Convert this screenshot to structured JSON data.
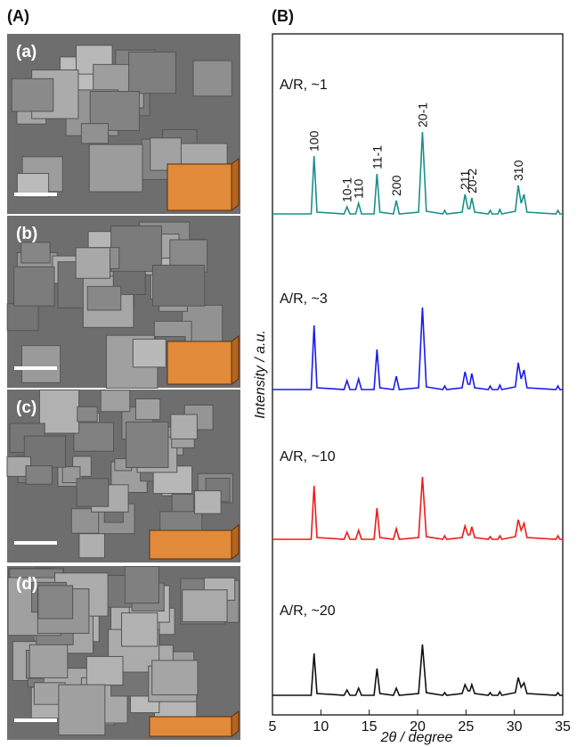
{
  "panels": {
    "A": "(A)",
    "B": "(B)",
    "images": [
      "(a)",
      "(b)",
      "(c)",
      "(d)"
    ]
  },
  "chart_data": {
    "type": "line",
    "xlabel": "2θ / degree",
    "ylabel": "Intensity / a.u.",
    "xlim": [
      5,
      35
    ],
    "xticks": [
      5,
      10,
      15,
      20,
      25,
      30,
      35
    ],
    "x": [
      5,
      9.0,
      9.3,
      9.6,
      12.4,
      12.7,
      13.0,
      13.6,
      13.9,
      14.2,
      15.5,
      15.8,
      16.1,
      17.5,
      17.8,
      18.1,
      20.1,
      20.5,
      20.9,
      22.6,
      22.8,
      23.0,
      24.6,
      24.9,
      25.2,
      25.4,
      25.6,
      25.9,
      27.3,
      27.5,
      27.7,
      28.3,
      28.5,
      28.7,
      30.1,
      30.4,
      30.7,
      31.0,
      31.3,
      34.3,
      34.5,
      34.7,
      35
    ],
    "series": [
      {
        "name": "A/R, ~1",
        "color": "#1a8f8a",
        "values": [
          0,
          0,
          65,
          2,
          0,
          8,
          0,
          0,
          12,
          0,
          0,
          45,
          2,
          0,
          15,
          0,
          2,
          92,
          3,
          0,
          4,
          0,
          2,
          22,
          6,
          6,
          18,
          2,
          0,
          4,
          0,
          0,
          5,
          0,
          3,
          32,
          12,
          22,
          2,
          0,
          4,
          0,
          0
        ]
      },
      {
        "name": "A/R, ~3",
        "color": "#1a1aee",
        "values": [
          0,
          0,
          72,
          2,
          0,
          10,
          0,
          0,
          12,
          0,
          0,
          45,
          2,
          0,
          15,
          0,
          2,
          92,
          3,
          0,
          4,
          0,
          2,
          20,
          6,
          6,
          18,
          2,
          0,
          4,
          0,
          0,
          5,
          0,
          3,
          30,
          12,
          22,
          2,
          0,
          4,
          0,
          0
        ]
      },
      {
        "name": "A/R, ~10",
        "color": "#ee1a1a",
        "values": [
          0,
          0,
          60,
          2,
          0,
          8,
          0,
          0,
          10,
          0,
          0,
          35,
          2,
          0,
          12,
          0,
          2,
          70,
          3,
          0,
          4,
          0,
          2,
          15,
          5,
          5,
          14,
          2,
          0,
          3,
          0,
          0,
          4,
          0,
          3,
          22,
          10,
          18,
          2,
          0,
          4,
          0,
          0
        ]
      },
      {
        "name": "A/R, ~20",
        "color": "#111111",
        "values": [
          0,
          0,
          47,
          2,
          0,
          6,
          0,
          0,
          8,
          0,
          0,
          30,
          2,
          0,
          8,
          0,
          2,
          57,
          3,
          0,
          3,
          0,
          2,
          12,
          5,
          5,
          12,
          2,
          0,
          3,
          0,
          0,
          4,
          0,
          3,
          20,
          9,
          14,
          2,
          0,
          3,
          0,
          0
        ]
      }
    ],
    "annotations": [
      {
        "text": "100",
        "x": 9.3
      },
      {
        "text": "10-1",
        "x": 12.7
      },
      {
        "text": "110",
        "x": 13.9
      },
      {
        "text": "11-1",
        "x": 15.8
      },
      {
        "text": "200",
        "x": 17.8
      },
      {
        "text": "20-1",
        "x": 20.5
      },
      {
        "text": "211",
        "x": 24.9
      },
      {
        "text": "20-2",
        "x": 25.6
      },
      {
        "text": "310",
        "x": 30.4
      }
    ]
  }
}
